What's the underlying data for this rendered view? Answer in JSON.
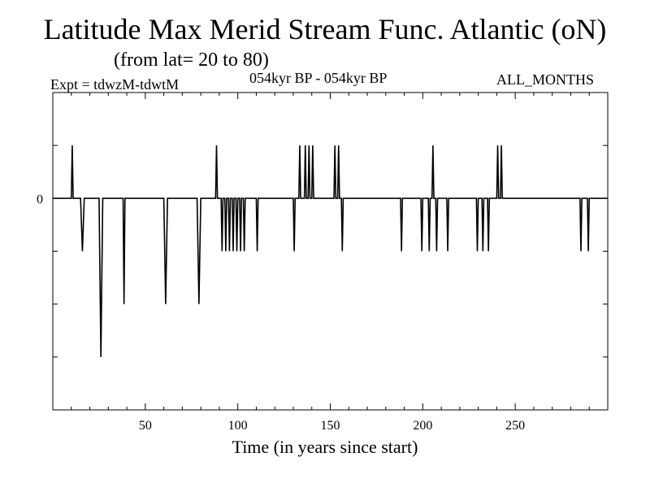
{
  "header": {
    "title": "Latitude Max Merid Stream Func. Atlantic (oN)",
    "subtitle": "(from lat= 20 to 80)",
    "expt": "Expt = tdwzM-tdwtM",
    "period": "054kyr BP - 054kyr BP",
    "months": "ALL_MONTHS"
  },
  "chart_data": {
    "type": "line",
    "title": "Latitude Max Merid Stream Func. Atlantic (oN)",
    "subtitle": "(from lat= 20 to 80)",
    "xlabel": "Time (in years since start)",
    "ylabel": "",
    "xlim": [
      0,
      300
    ],
    "ylim": [
      -4,
      2
    ],
    "x_ticks": [
      50,
      100,
      150,
      200,
      250
    ],
    "x_tick_labels": [
      "50",
      "100",
      "150",
      "200",
      "250"
    ],
    "y_ticks": [
      0
    ],
    "y_tick_labels": [
      "0"
    ],
    "grid": false,
    "legend": "none",
    "series": [
      {
        "values": [
          [
            0,
            0
          ],
          [
            10,
            0
          ],
          [
            10.5,
            1
          ],
          [
            11,
            0
          ],
          [
            12,
            0
          ],
          [
            15,
            0
          ],
          [
            16,
            -1
          ],
          [
            17,
            0
          ],
          [
            25,
            0
          ],
          [
            26,
            -3
          ],
          [
            27,
            0
          ],
          [
            38,
            0
          ],
          [
            38.5,
            -2
          ],
          [
            39,
            0
          ],
          [
            49,
            0
          ],
          [
            60,
            0
          ],
          [
            61,
            -2
          ],
          [
            62,
            0
          ],
          [
            78,
            0
          ],
          [
            79,
            -2
          ],
          [
            80,
            0
          ],
          [
            88,
            0
          ],
          [
            88.5,
            1
          ],
          [
            89,
            0
          ],
          [
            91,
            0
          ],
          [
            91.5,
            -1
          ],
          [
            92,
            0
          ],
          [
            93,
            0
          ],
          [
            93.5,
            -1
          ],
          [
            94,
            0
          ],
          [
            95,
            0
          ],
          [
            95.5,
            -1
          ],
          [
            96,
            0
          ],
          [
            97,
            0
          ],
          [
            97.5,
            -1
          ],
          [
            98,
            0
          ],
          [
            99,
            0
          ],
          [
            99.5,
            -1
          ],
          [
            100,
            0
          ],
          [
            101,
            0
          ],
          [
            101.5,
            -1
          ],
          [
            102,
            0
          ],
          [
            103,
            0
          ],
          [
            103.5,
            -1
          ],
          [
            104,
            0
          ],
          [
            110,
            0
          ],
          [
            110.5,
            -1
          ],
          [
            111,
            0
          ],
          [
            130,
            0
          ],
          [
            130.5,
            -1
          ],
          [
            131,
            0
          ],
          [
            133,
            0
          ],
          [
            133.5,
            1
          ],
          [
            134,
            0
          ],
          [
            136,
            0
          ],
          [
            136.5,
            1
          ],
          [
            137,
            0
          ],
          [
            138,
            0
          ],
          [
            138.5,
            1
          ],
          [
            139,
            0
          ],
          [
            140,
            0
          ],
          [
            140.5,
            1
          ],
          [
            141,
            0
          ],
          [
            152,
            0
          ],
          [
            152.5,
            1
          ],
          [
            153,
            0
          ],
          [
            154,
            0
          ],
          [
            154.5,
            1
          ],
          [
            155,
            0
          ],
          [
            156,
            0
          ],
          [
            156.5,
            -1
          ],
          [
            157,
            0
          ],
          [
            188,
            0
          ],
          [
            188.5,
            -1
          ],
          [
            189,
            0
          ],
          [
            199,
            0
          ],
          [
            199.5,
            -1
          ],
          [
            200,
            0
          ],
          [
            203,
            0
          ],
          [
            203.5,
            -1
          ],
          [
            204,
            0
          ],
          [
            205,
            0
          ],
          [
            205.5,
            1
          ],
          [
            206,
            0
          ],
          [
            207,
            0
          ],
          [
            207.5,
            -1
          ],
          [
            208,
            0
          ],
          [
            213,
            0
          ],
          [
            213.5,
            -1
          ],
          [
            214,
            0
          ],
          [
            229,
            0
          ],
          [
            229.5,
            -1
          ],
          [
            230,
            0
          ],
          [
            232,
            0
          ],
          [
            232.5,
            -1
          ],
          [
            233,
            0
          ],
          [
            235,
            0
          ],
          [
            235.5,
            -1
          ],
          [
            236,
            0
          ],
          [
            240,
            0
          ],
          [
            240.5,
            1
          ],
          [
            241,
            0
          ],
          [
            242,
            0
          ],
          [
            242.5,
            1
          ],
          [
            243,
            0
          ],
          [
            285,
            0
          ],
          [
            285.5,
            -1
          ],
          [
            286,
            0
          ],
          [
            289,
            0
          ],
          [
            289.5,
            -1
          ],
          [
            290,
            0
          ],
          [
            300,
            0
          ]
        ]
      }
    ]
  }
}
